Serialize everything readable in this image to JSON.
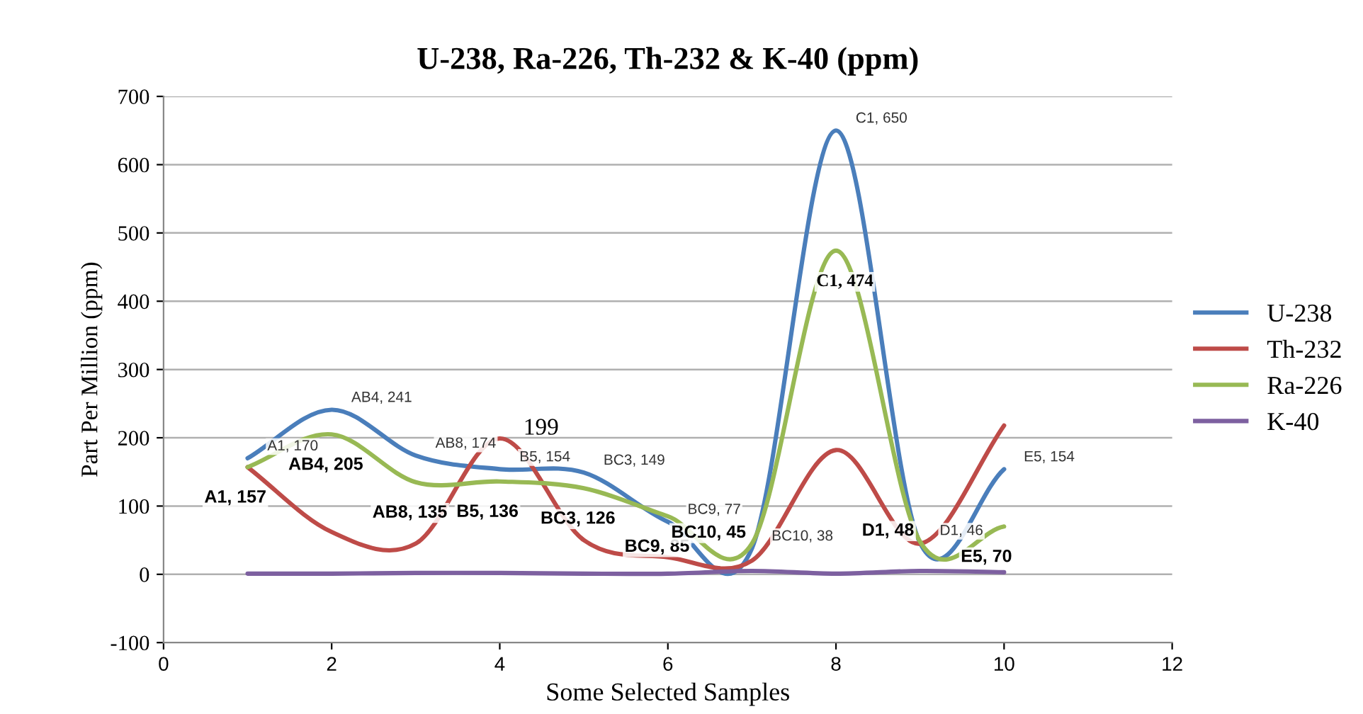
{
  "chart_data": {
    "type": "line",
    "title": "U-238, Ra-226, Th-232 & K-40 (ppm)",
    "xlabel": "Some Selected Samples",
    "ylabel": "Part Per Million (ppm)",
    "x": [
      1,
      2,
      3,
      4,
      5,
      6,
      7,
      8,
      9,
      10
    ],
    "series": [
      {
        "name": "U-238",
        "color": "#4a7ebb",
        "values": [
          170,
          241,
          174,
          154,
          149,
          77,
          38,
          650,
          46,
          154
        ],
        "value_labels": [
          "A1, 170",
          "AB4, 241",
          "AB8, 174",
          "B5, 154",
          "BC3, 149",
          "BC9, 77",
          "BC10, 38",
          "C1, 650",
          "D1, 46",
          "E5, 154"
        ]
      },
      {
        "name": "Th-232",
        "color": "#be4b48",
        "values": [
          157,
          62,
          45,
          199,
          50,
          25,
          20,
          182,
          45,
          218
        ],
        "value_labels": [
          null,
          null,
          null,
          "199",
          null,
          null,
          null,
          null,
          null,
          null
        ]
      },
      {
        "name": "Ra-226",
        "color": "#98b954",
        "values": [
          157,
          205,
          135,
          136,
          126,
          85,
          45,
          474,
          48,
          70
        ],
        "value_labels": [
          "A1, 157",
          "AB4, 205",
          "AB8, 135",
          "B5, 136",
          "BC3, 126",
          "BC9, 85",
          "BC10, 45",
          "C1, 474",
          "D1, 48",
          "E5, 70"
        ]
      },
      {
        "name": "K-40",
        "color": "#7d60a0",
        "values": [
          1,
          1,
          2,
          2,
          1,
          1,
          5,
          1,
          5,
          3
        ]
      }
    ],
    "xlim": [
      0,
      12
    ],
    "xticks": [
      0,
      2,
      4,
      6,
      8,
      10,
      12
    ],
    "ylim": [
      -100,
      700
    ],
    "yticks": [
      -100,
      0,
      100,
      200,
      300,
      400,
      500,
      600,
      700
    ],
    "grid": "y",
    "legend": "right",
    "marker": "none",
    "line_style": "solid"
  }
}
